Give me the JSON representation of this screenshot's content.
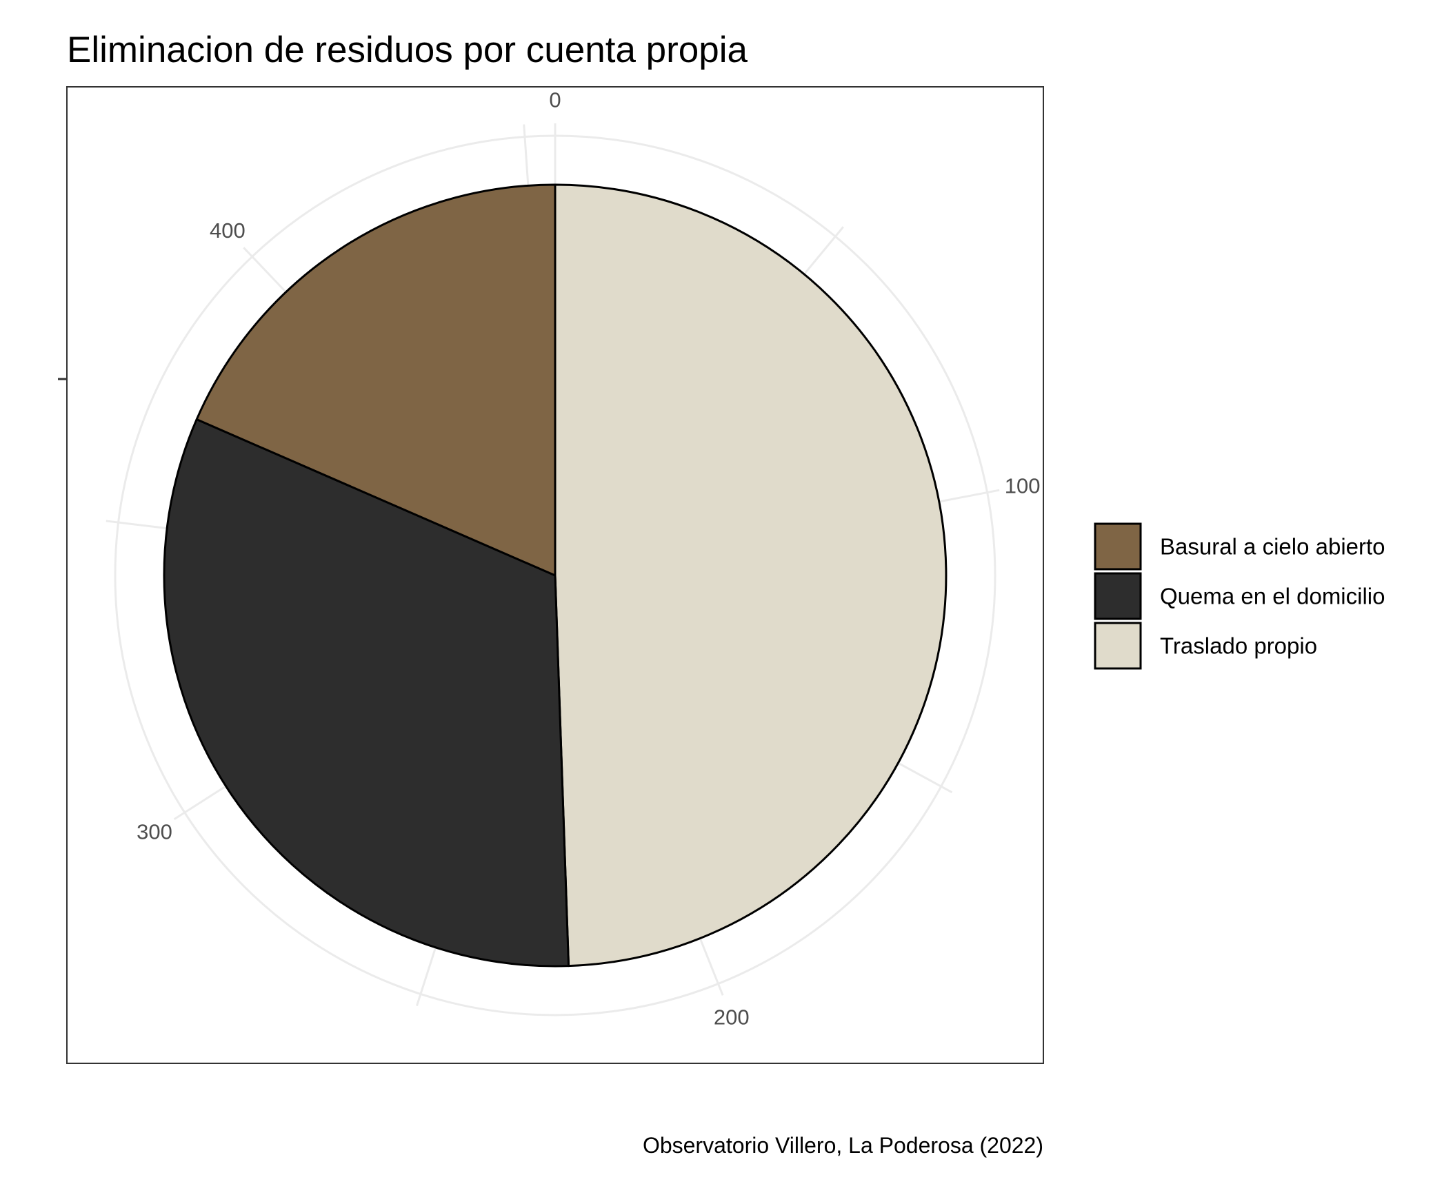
{
  "chart_data": {
    "type": "pie",
    "title": "Eliminacion de residuos por cuenta propia",
    "caption": "Observatorio Villero, La Poderosa (2022)",
    "categories": [
      "Basural a cielo abierto",
      "Quema en el domicilio",
      "Traslado propio"
    ],
    "values": [
      84,
      146,
      225
    ],
    "colors": [
      "#7f6545",
      "#2d2d2d",
      "#e0dbcb"
    ],
    "stack_order": [
      "Traslado propio",
      "Quema en el domicilio",
      "Basural a cielo abierto"
    ],
    "theta_axis": {
      "ticks": [
        0,
        100,
        200,
        300,
        400
      ],
      "tick_labels": [
        "0",
        "100",
        "200",
        "300",
        "400"
      ],
      "range": [
        0,
        455
      ]
    },
    "legend": {
      "position": "right",
      "entries": [
        "Basural a cielo abierto",
        "Quema en el domicilio",
        "Traslado propio"
      ]
    },
    "grid": true,
    "grid_color": "#ebebeb",
    "panel_border": true
  }
}
